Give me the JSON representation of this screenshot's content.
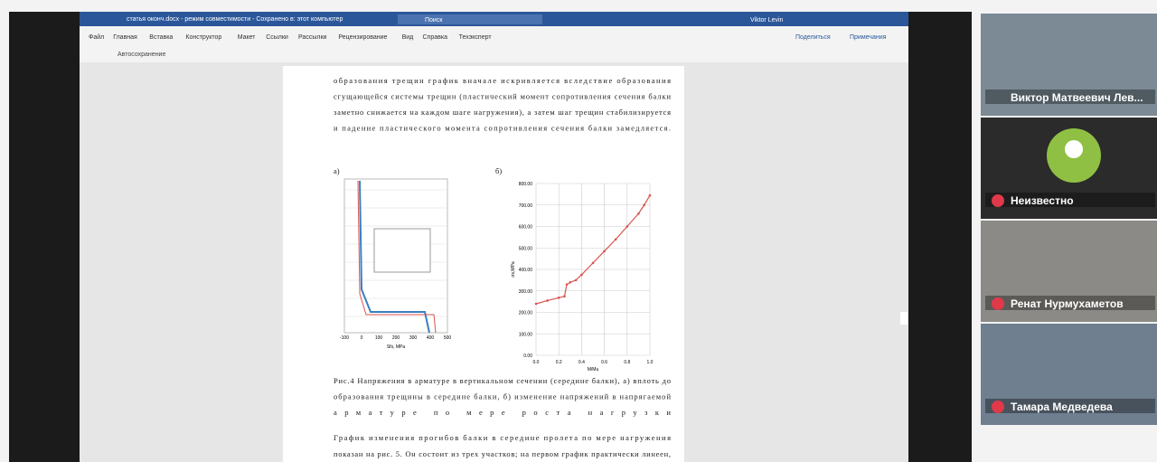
{
  "word": {
    "titlebar": "статья оконч.docx - режим совместимости - Сохранено в: этот компьютер",
    "search": "Поиск",
    "user": "Viktor Levin",
    "menu": [
      "Файл",
      "Главная",
      "Вставка",
      "Конструктор",
      "Макет",
      "Ссылки",
      "Рассылки",
      "Рецензирование",
      "Вид",
      "Справка",
      "Техэксперт"
    ],
    "share": "Поделиться",
    "comments": "Примечания",
    "autosave": "Автосохранение"
  },
  "document": {
    "paragraph1": [
      "образования трещин график вначале искривляется вследствие образования",
      "сгущающейся системы трещин (пластический момент сопротивления сечения балки",
      "заметно снижается на каждом шаге нагружения), а затем шаг трещин стабилизируется",
      "и падение пластического момента сопротивления сечения балки замедляется."
    ],
    "figure": {
      "label_a": "а)",
      "label_b": "б)",
      "chart_a": {
        "xlabel": "Sfs, MPa",
        "xticks": [
          -100,
          0,
          100,
          200,
          300,
          400,
          500
        ]
      },
      "chart_b": {
        "type": "line",
        "xlabel": "M/Mu",
        "ylabel": "σs,MPa",
        "color": "#d9534f",
        "x": [
          0,
          0.1,
          0.2,
          0.25,
          0.27,
          0.3,
          0.35,
          0.4,
          0.5,
          0.6,
          0.7,
          0.8,
          0.9,
          0.95,
          1.0
        ],
        "values": [
          240,
          255,
          268,
          275,
          330,
          340,
          350,
          375,
          430,
          485,
          540,
          600,
          660,
          700,
          745
        ],
        "xlim": [
          0,
          1
        ],
        "ylim": [
          0,
          800
        ],
        "xticks": [
          {
            "value": 0,
            "label": "0.0"
          },
          {
            "value": 0.2,
            "label": "0.2"
          },
          {
            "value": 0.4,
            "label": "0.4"
          },
          {
            "value": 0.6,
            "label": "0.6"
          },
          {
            "value": 0.8,
            "label": "0.8"
          },
          {
            "value": 1,
            "label": "1.0"
          }
        ],
        "yticks": [
          {
            "value": 0,
            "label": "0.00"
          },
          {
            "value": 100,
            "label": "100.00"
          },
          {
            "value": 200,
            "label": "200.00"
          },
          {
            "value": 300,
            "label": "300.00"
          },
          {
            "value": 400,
            "label": "400.00"
          },
          {
            "value": 500,
            "label": "500.00"
          },
          {
            "value": 600,
            "label": "600.00"
          },
          {
            "value": 700,
            "label": "700.00"
          },
          {
            "value": 800,
            "label": "800.00"
          }
        ]
      }
    },
    "caption": [
      "Рис.4 Напряжения в арматуре в вертикальном сечении (середине балки), а) вплоть до",
      "образования трещины в середине балки, б) изменение напряжений в напрягаемой",
      "арматуре по мере роста нагрузки"
    ],
    "paragraph2": [
      "График изменения прогибов балки в середине пролета по мере нагружения",
      "показан на рис. 5. Он состоит из трех участков; на первом график практически линеен,"
    ]
  },
  "participants": [
    "Виктор Матвеевич Лев...",
    "Неизвестно",
    "Ренат Нурмухаметов",
    "Тамара Медведева"
  ]
}
